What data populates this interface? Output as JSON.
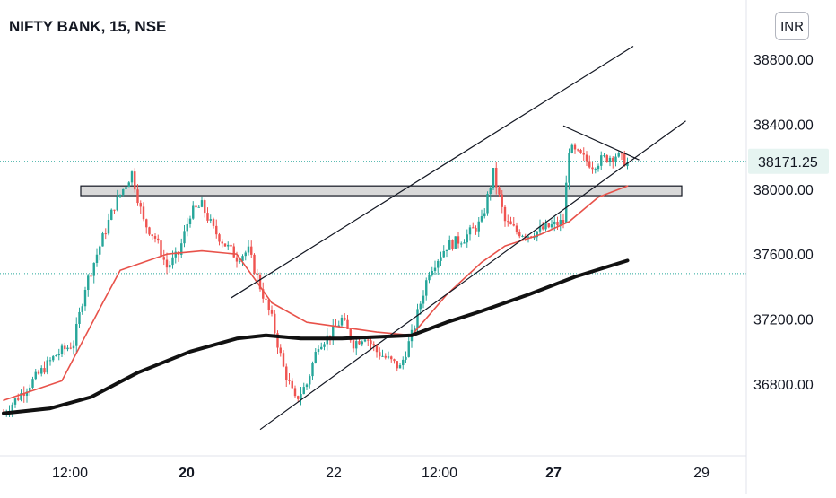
{
  "symbol_title": "NIFTY BANK, 15, NSE",
  "currency_button": "INR",
  "colors": {
    "up": "#26a69a",
    "down": "#ef5350",
    "ma_fast": "#e8524a",
    "ma_slow": "#111111",
    "dotted_current": "#26a69a",
    "zone_fill": "#d9d9d9"
  },
  "chart_data": {
    "type": "candlestick",
    "y_axis": {
      "ticks": [
        38800,
        38400,
        38000,
        37600,
        37200,
        36800
      ],
      "tick_labels": [
        "38800.00",
        "38400.00",
        "38000.00",
        "37600.00",
        "37200.00",
        "36800.00"
      ],
      "range": [
        36500,
        39050
      ]
    },
    "x_axis": {
      "tick_labels": [
        "12:00",
        "20",
        "22",
        "12:00",
        "27",
        "29"
      ],
      "bold_labels": [
        "20",
        "27"
      ]
    },
    "last_price": 38171.25,
    "last_price_label": "38171.25",
    "support_line_level": 37480,
    "resistance_zone": [
      37960,
      38020
    ],
    "anchors": [
      [
        0,
        36620
      ],
      [
        10,
        36820
      ],
      [
        18,
        36980
      ],
      [
        24,
        37050
      ],
      [
        28,
        37400
      ],
      [
        34,
        37700
      ],
      [
        38,
        37900
      ],
      [
        44,
        38100
      ],
      [
        48,
        37800
      ],
      [
        52,
        37700
      ],
      [
        56,
        37520
      ],
      [
        60,
        37600
      ],
      [
        64,
        37850
      ],
      [
        68,
        37900
      ],
      [
        72,
        37750
      ],
      [
        76,
        37660
      ],
      [
        80,
        37580
      ],
      [
        84,
        37620
      ],
      [
        88,
        37400
      ],
      [
        92,
        37200
      ],
      [
        96,
        36900
      ],
      [
        100,
        36700
      ],
      [
        104,
        36800
      ],
      [
        108,
        37050
      ],
      [
        112,
        37100
      ],
      [
        116,
        37200
      ],
      [
        120,
        37050
      ],
      [
        124,
        37100
      ],
      [
        128,
        37000
      ],
      [
        132,
        36950
      ],
      [
        136,
        36900
      ],
      [
        140,
        37100
      ],
      [
        146,
        37500
      ],
      [
        152,
        37650
      ],
      [
        158,
        37700
      ],
      [
        164,
        37800
      ],
      [
        168,
        38100
      ],
      [
        172,
        37800
      ],
      [
        176,
        37740
      ],
      [
        180,
        37720
      ],
      [
        186,
        37760
      ],
      [
        192,
        37800
      ],
      [
        194,
        38250
      ],
      [
        198,
        38200
      ],
      [
        202,
        38150
      ],
      [
        206,
        38190
      ],
      [
        210,
        38210
      ],
      [
        214,
        38160
      ]
    ],
    "ma_fast": [
      [
        0,
        36700
      ],
      [
        20,
        36820
      ],
      [
        34,
        37300
      ],
      [
        40,
        37500
      ],
      [
        56,
        37600
      ],
      [
        68,
        37620
      ],
      [
        80,
        37600
      ],
      [
        92,
        37300
      ],
      [
        104,
        37180
      ],
      [
        116,
        37150
      ],
      [
        128,
        37120
      ],
      [
        140,
        37100
      ],
      [
        152,
        37350
      ],
      [
        164,
        37550
      ],
      [
        172,
        37650
      ],
      [
        184,
        37720
      ],
      [
        194,
        37800
      ],
      [
        204,
        37950
      ],
      [
        214,
        38020
      ]
    ],
    "ma_slow": [
      [
        0,
        36620
      ],
      [
        16,
        36650
      ],
      [
        30,
        36720
      ],
      [
        46,
        36870
      ],
      [
        64,
        37000
      ],
      [
        80,
        37080
      ],
      [
        90,
        37100
      ],
      [
        102,
        37080
      ],
      [
        116,
        37080
      ],
      [
        128,
        37090
      ],
      [
        140,
        37100
      ],
      [
        152,
        37180
      ],
      [
        164,
        37250
      ],
      [
        180,
        37350
      ],
      [
        196,
        37460
      ],
      [
        214,
        37560
      ]
    ],
    "trendlines": [
      {
        "name": "channel-upper",
        "from": [
          78,
          37330
        ],
        "to": [
          216,
          38880
        ]
      },
      {
        "name": "channel-lower",
        "from": [
          88,
          36520
        ],
        "to": [
          234,
          38420
        ]
      },
      {
        "name": "triangle-top",
        "from": [
          192,
          38390
        ],
        "to": [
          218,
          38180
        ]
      }
    ]
  }
}
